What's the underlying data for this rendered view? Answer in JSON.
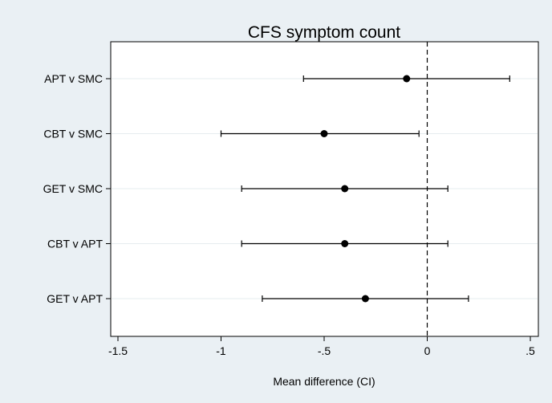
{
  "chart_data": {
    "type": "forest",
    "title": "CFS symptom count",
    "xlabel": "Mean difference (CI)",
    "ylabel": "",
    "xlim": [
      -1.55,
      0.55
    ],
    "xticks": [
      -1.5,
      -1,
      -0.5,
      0,
      0.5
    ],
    "xtick_labels": [
      "-1.5",
      "-1",
      "-.5",
      "0",
      ".5"
    ],
    "reference_line": 0,
    "grid": true,
    "rows": [
      {
        "label": "APT v SMC",
        "estimate": -0.1,
        "lower": -0.6,
        "upper": 0.4
      },
      {
        "label": "CBT v SMC",
        "estimate": -0.5,
        "lower": -1.0,
        "upper": -0.04
      },
      {
        "label": "GET v SMC",
        "estimate": -0.4,
        "lower": -0.9,
        "upper": 0.1
      },
      {
        "label": "CBT v APT",
        "estimate": -0.4,
        "lower": -0.9,
        "upper": 0.1
      },
      {
        "label": "GET v APT",
        "estimate": -0.3,
        "lower": -0.8,
        "upper": 0.2
      }
    ]
  },
  "colors": {
    "outer_background": "#eaf0f4",
    "plot_background": "#ffffff",
    "marks": "#000000",
    "grid": "#e6ecef"
  }
}
